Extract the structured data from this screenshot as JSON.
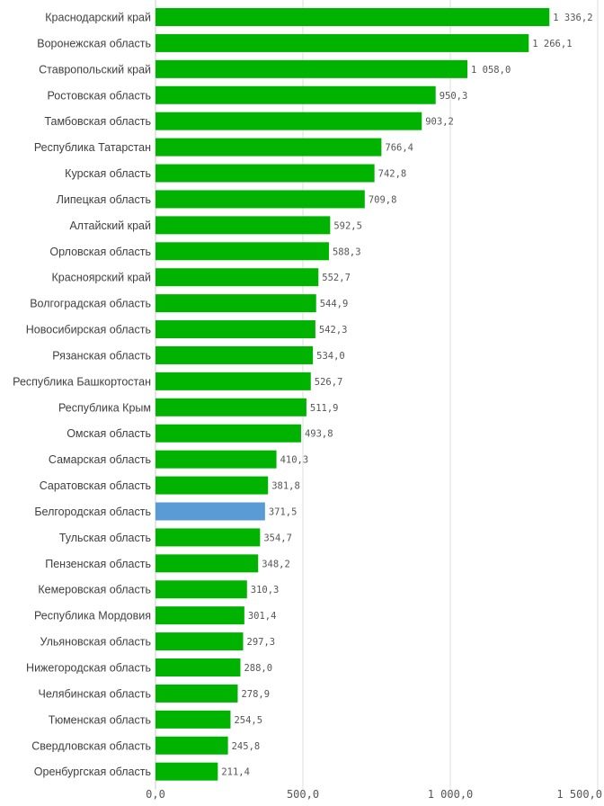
{
  "chart_data": {
    "type": "bar",
    "orientation": "horizontal",
    "categories": [
      "Краснодарский край",
      "Воронежская область",
      "Ставропольский край",
      "Ростовская область",
      "Тамбовская область",
      "Республика Татарстан",
      "Курская область",
      "Липецкая область",
      "Алтайский край",
      "Орловская область",
      "Красноярский край",
      "Волгоградская область",
      "Новосибирская область",
      "Рязанская область",
      "Республика Башкортостан",
      "Республика Крым",
      "Омская область",
      "Самарская область",
      "Саратовская область",
      "Белгородская область",
      "Тульская область",
      "Пензенская область",
      "Кемеровская область",
      "Республика Мордовия",
      "Ульяновская область",
      "Нижегородская область",
      "Челябинская область",
      "Тюменская область",
      "Свердловская область",
      "Оренбургская область"
    ],
    "values": [
      1336.2,
      1266.1,
      1058.0,
      950.3,
      903.2,
      766.4,
      742.8,
      709.8,
      592.5,
      588.3,
      552.7,
      544.9,
      542.3,
      534.0,
      526.7,
      511.9,
      493.8,
      410.3,
      381.8,
      371.5,
      354.7,
      348.2,
      310.3,
      301.4,
      297.3,
      288.0,
      278.9,
      254.5,
      245.8,
      211.4
    ],
    "value_labels": [
      "1 336,2",
      "1 266,1",
      "1 058,0",
      "950,3",
      "903,2",
      "766,4",
      "742,8",
      "709,8",
      "592,5",
      "588,3",
      "552,7",
      "544,9",
      "542,3",
      "534,0",
      "526,7",
      "511,9",
      "493,8",
      "410,3",
      "381,8",
      "371,5",
      "354,7",
      "348,2",
      "310,3",
      "301,4",
      "297,3",
      "288,0",
      "278,9",
      "254,5",
      "245,8",
      "211,4"
    ],
    "highlight": "Белгородская область",
    "colors": {
      "bar": "#00b300",
      "highlight": "#5b9bd5",
      "grid": "#dddddd"
    },
    "xlim": [
      0,
      1500
    ],
    "x_ticks": [
      0,
      500,
      1000,
      1500
    ],
    "x_tick_labels": [
      "0,0",
      "500,0",
      "1 000,0",
      "1 500,0"
    ],
    "grid": true,
    "title": "",
    "xlabel": "",
    "ylabel": ""
  }
}
